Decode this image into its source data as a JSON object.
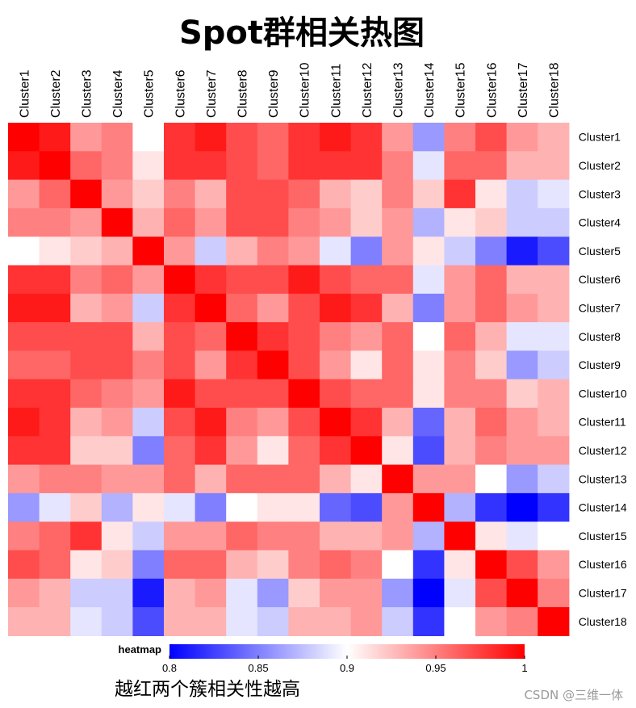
{
  "chart_data": {
    "type": "heatmap",
    "title": "Spot群相关热图",
    "rows": [
      "Cluster1",
      "Cluster2",
      "Cluster3",
      "Cluster4",
      "Cluster5",
      "Cluster6",
      "Cluster7",
      "Cluster8",
      "Cluster9",
      "Cluster10",
      "Cluster11",
      "Cluster12",
      "Cluster13",
      "Cluster14",
      "Cluster15",
      "Cluster16",
      "Cluster17",
      "Cluster18"
    ],
    "columns": [
      "Cluster1",
      "Cluster2",
      "Cluster3",
      "Cluster4",
      "Cluster5",
      "Cluster6",
      "Cluster7",
      "Cluster8",
      "Cluster9",
      "Cluster10",
      "Cluster11",
      "Cluster12",
      "Cluster13",
      "Cluster14",
      "Cluster15",
      "Cluster16",
      "Cluster17",
      "Cluster18"
    ],
    "values": [
      [
        1.0,
        0.99,
        0.94,
        0.95,
        0.9,
        0.98,
        0.99,
        0.97,
        0.96,
        0.98,
        0.99,
        0.98,
        0.94,
        0.86,
        0.95,
        0.97,
        0.94,
        0.93
      ],
      [
        0.99,
        1.0,
        0.96,
        0.95,
        0.91,
        0.98,
        0.98,
        0.97,
        0.96,
        0.98,
        0.98,
        0.98,
        0.95,
        0.89,
        0.96,
        0.96,
        0.93,
        0.93
      ],
      [
        0.94,
        0.96,
        1.0,
        0.94,
        0.92,
        0.95,
        0.93,
        0.97,
        0.97,
        0.96,
        0.93,
        0.92,
        0.95,
        0.92,
        0.98,
        0.91,
        0.88,
        0.89
      ],
      [
        0.95,
        0.95,
        0.94,
        1.0,
        0.93,
        0.96,
        0.94,
        0.97,
        0.97,
        0.95,
        0.94,
        0.92,
        0.94,
        0.87,
        0.91,
        0.92,
        0.88,
        0.88
      ],
      [
        0.9,
        0.91,
        0.92,
        0.93,
        1.0,
        0.94,
        0.88,
        0.93,
        0.95,
        0.94,
        0.89,
        0.85,
        0.94,
        0.91,
        0.88,
        0.85,
        0.81,
        0.83
      ],
      [
        0.98,
        0.98,
        0.95,
        0.96,
        0.94,
        1.0,
        0.98,
        0.97,
        0.97,
        0.99,
        0.97,
        0.96,
        0.96,
        0.89,
        0.94,
        0.96,
        0.93,
        0.93
      ],
      [
        0.99,
        0.99,
        0.93,
        0.94,
        0.88,
        0.98,
        1.0,
        0.96,
        0.94,
        0.97,
        0.99,
        0.98,
        0.93,
        0.85,
        0.94,
        0.96,
        0.94,
        0.93
      ],
      [
        0.97,
        0.97,
        0.97,
        0.97,
        0.93,
        0.97,
        0.96,
        1.0,
        0.98,
        0.97,
        0.95,
        0.94,
        0.96,
        0.9,
        0.96,
        0.93,
        0.89,
        0.89
      ],
      [
        0.96,
        0.96,
        0.97,
        0.97,
        0.95,
        0.97,
        0.94,
        0.98,
        1.0,
        0.97,
        0.94,
        0.91,
        0.96,
        0.91,
        0.95,
        0.92,
        0.86,
        0.88
      ],
      [
        0.98,
        0.98,
        0.96,
        0.95,
        0.94,
        0.99,
        0.97,
        0.97,
        0.97,
        1.0,
        0.97,
        0.96,
        0.96,
        0.91,
        0.95,
        0.95,
        0.92,
        0.93
      ],
      [
        0.99,
        0.98,
        0.93,
        0.94,
        0.88,
        0.97,
        0.99,
        0.95,
        0.94,
        0.97,
        1.0,
        0.98,
        0.93,
        0.84,
        0.93,
        0.96,
        0.94,
        0.93
      ],
      [
        0.98,
        0.98,
        0.92,
        0.92,
        0.85,
        0.96,
        0.98,
        0.94,
        0.91,
        0.96,
        0.98,
        1.0,
        0.91,
        0.83,
        0.93,
        0.95,
        0.94,
        0.94
      ],
      [
        0.94,
        0.95,
        0.95,
        0.94,
        0.94,
        0.96,
        0.93,
        0.96,
        0.96,
        0.96,
        0.93,
        0.91,
        1.0,
        0.94,
        0.94,
        0.9,
        0.86,
        0.88
      ],
      [
        0.86,
        0.89,
        0.92,
        0.87,
        0.91,
        0.89,
        0.85,
        0.9,
        0.91,
        0.91,
        0.84,
        0.83,
        0.94,
        1.0,
        0.87,
        0.82,
        0.8,
        0.82
      ],
      [
        0.95,
        0.96,
        0.98,
        0.91,
        0.88,
        0.94,
        0.94,
        0.96,
        0.95,
        0.95,
        0.93,
        0.93,
        0.94,
        0.87,
        1.0,
        0.91,
        0.89,
        0.9
      ],
      [
        0.97,
        0.96,
        0.91,
        0.92,
        0.85,
        0.96,
        0.96,
        0.93,
        0.92,
        0.95,
        0.96,
        0.95,
        0.9,
        0.82,
        0.91,
        1.0,
        0.97,
        0.94
      ],
      [
        0.94,
        0.93,
        0.88,
        0.88,
        0.81,
        0.93,
        0.94,
        0.89,
        0.86,
        0.92,
        0.94,
        0.94,
        0.86,
        0.8,
        0.89,
        0.97,
        1.0,
        0.95
      ],
      [
        0.93,
        0.93,
        0.89,
        0.88,
        0.83,
        0.93,
        0.93,
        0.89,
        0.88,
        0.93,
        0.93,
        0.94,
        0.88,
        0.82,
        0.9,
        0.94,
        0.95,
        1.0
      ]
    ],
    "colorbar": {
      "label": "heatmap",
      "range": [
        0.8,
        1.0
      ],
      "ticks": [
        "0.8",
        "0.85",
        "0.9",
        "0.95",
        "1"
      ],
      "low_color": "#0000ff",
      "mid_color": "#ffffff",
      "high_color": "#ff0000",
      "mid_value": 0.9
    }
  },
  "caption": "越红两个簇相关性越高",
  "watermark": "CSDN @三维一体"
}
